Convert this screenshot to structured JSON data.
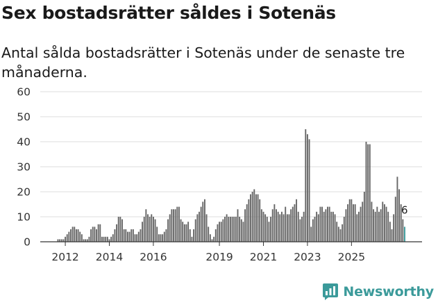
{
  "title": "Sex bostadsrätter såldes i Sotenäs",
  "subtitle": "Antal sålda bostadsrätter i Sotenäs under de senaste tre månaderna.",
  "logo": {
    "text": "Newsworthy",
    "icon": "newsworthy-logo-icon",
    "color": "#3b9a9a"
  },
  "chart_data": {
    "type": "bar",
    "title": "Sex bostadsrätter såldes i Sotenäs",
    "xlabel": "",
    "ylabel": "",
    "ylim": [
      0,
      60
    ],
    "yticks": [
      0,
      10,
      20,
      30,
      40,
      50,
      60
    ],
    "xticks": [
      {
        "label": "2012",
        "year": 2012
      },
      {
        "label": "2014",
        "year": 2014
      },
      {
        "label": "2016",
        "year": 2016
      },
      {
        "label": "2019",
        "year": 2019
      },
      {
        "label": "2021",
        "year": 2021
      },
      {
        "label": "2023",
        "year": 2023
      },
      {
        "label": "2025",
        "year": 2025
      }
    ],
    "grid": true,
    "bar_color": "#666666",
    "highlight_color": "#3b9a9a",
    "annotation": {
      "text": "6",
      "index": "last"
    },
    "series": [
      {
        "name": "Antal sålda bostadsrätter (rullande tre månader)",
        "start": "2011-09",
        "values": [
          1,
          1,
          1,
          1,
          2,
          3,
          4,
          5,
          6,
          6,
          5,
          5,
          4,
          3,
          1,
          1,
          1,
          2,
          5,
          6,
          6,
          5,
          7,
          7,
          2,
          2,
          2,
          2,
          1,
          2,
          3,
          5,
          7,
          10,
          10,
          9,
          5,
          5,
          4,
          4,
          5,
          5,
          3,
          3,
          4,
          5,
          8,
          10,
          13,
          11,
          10,
          11,
          10,
          9,
          6,
          3,
          3,
          3,
          4,
          5,
          9,
          11,
          13,
          13,
          13,
          14,
          14,
          9,
          8,
          7,
          7,
          8,
          5,
          2,
          5,
          9,
          11,
          12,
          14,
          16,
          17,
          11,
          6,
          3,
          1,
          2,
          5,
          7,
          8,
          8,
          9,
          10,
          11,
          10,
          10,
          10,
          10,
          10,
          13,
          10,
          9,
          8,
          13,
          15,
          17,
          19,
          20,
          21,
          19,
          19,
          17,
          13,
          12,
          11,
          10,
          8,
          10,
          13,
          15,
          13,
          12,
          11,
          12,
          11,
          14,
          11,
          11,
          13,
          14,
          15,
          17,
          12,
          9,
          10,
          12,
          45,
          43,
          41,
          6,
          9,
          10,
          12,
          11,
          14,
          14,
          12,
          13,
          14,
          14,
          12,
          12,
          11,
          8,
          6,
          5,
          7,
          10,
          13,
          15,
          17,
          17,
          15,
          15,
          11,
          12,
          14,
          16,
          20,
          40,
          39,
          39,
          16,
          13,
          12,
          14,
          12,
          13,
          16,
          15,
          14,
          12,
          8,
          5,
          11,
          18,
          26,
          21,
          15,
          9,
          6
        ]
      }
    ]
  }
}
